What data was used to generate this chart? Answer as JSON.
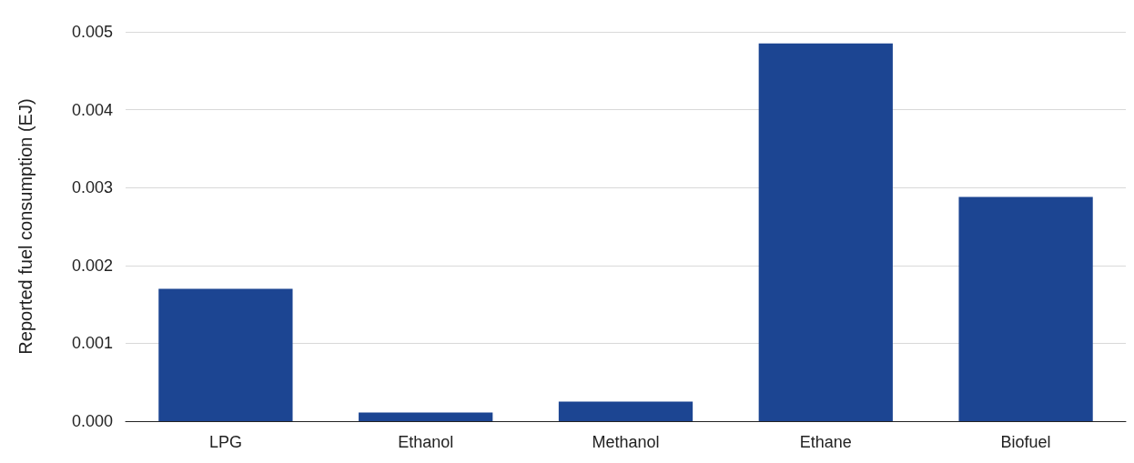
{
  "chart_data": {
    "type": "bar",
    "ylabel": "Reported fuel consumption (EJ)",
    "categories": [
      "LPG",
      "Ethanol",
      "Methanol",
      "Ethane",
      "Biofuel"
    ],
    "values": [
      0.0017,
      0.00011,
      0.00025,
      0.00485,
      0.00288
    ],
    "color": "#1c4592",
    "ylim": [
      0,
      0.005
    ],
    "yticks": [
      {
        "value": 0,
        "label": "0.000"
      },
      {
        "value": 0.001,
        "label": "0.001"
      },
      {
        "value": 0.002,
        "label": "0.002"
      },
      {
        "value": 0.003,
        "label": "0.003"
      },
      {
        "value": 0.004,
        "label": "0.004"
      },
      {
        "value": 0.005,
        "label": "0.005"
      }
    ],
    "grid": "y"
  }
}
